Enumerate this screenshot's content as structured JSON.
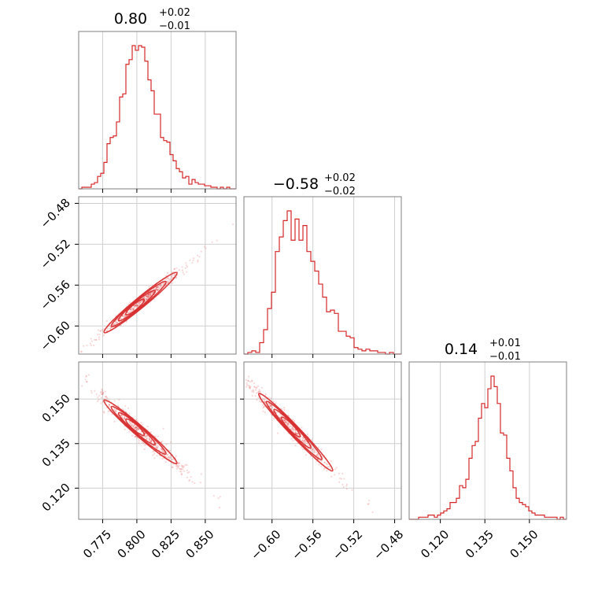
{
  "chart_data": {
    "type": "corner",
    "color": "#d62728",
    "grid": true,
    "params": [
      {
        "title": "0.80",
        "sup": "+0.02",
        "sub": "−0.01",
        "range": [
          0.7575,
          0.8725
        ],
        "ticks": [
          0.775,
          0.8,
          0.825,
          0.85
        ],
        "tick_labels": [
          "0.775",
          "0.800",
          "0.825",
          "0.850"
        ],
        "hist": [
          0,
          1,
          1,
          1,
          3,
          4,
          8,
          10,
          17,
          29,
          33,
          34,
          43,
          59,
          61,
          80,
          83,
          92,
          89,
          92,
          91,
          82,
          70,
          63,
          48,
          48,
          33,
          31,
          30,
          22,
          18,
          13,
          11,
          7,
          8,
          3,
          6,
          4,
          3,
          3,
          2,
          2,
          1,
          1,
          0,
          1,
          0,
          1,
          0,
          0
        ]
      },
      {
        "title": "−0.58",
        "sup": "+0.02",
        "sub": "−0.02",
        "range": [
          -0.6275,
          -0.4735
        ],
        "ticks": [
          -0.6,
          -0.56,
          -0.52,
          -0.48
        ],
        "tick_labels": [
          "−0.60",
          "−0.56",
          "−0.52",
          "−0.48"
        ],
        "hist": [
          0,
          1,
          2,
          1,
          7,
          15,
          28,
          38,
          63,
          72,
          82,
          88,
          70,
          83,
          70,
          79,
          63,
          57,
          51,
          43,
          35,
          26,
          27,
          25,
          14,
          14,
          11,
          10,
          4,
          3,
          2,
          3,
          2,
          2,
          1,
          1,
          0,
          1,
          0,
          0
        ]
      },
      {
        "title": "0.14",
        "sup": "+0.01",
        "sub": "−0.01",
        "range": [
          0.1095,
          0.1625
        ],
        "ticks": [
          0.12,
          0.135,
          0.15
        ],
        "tick_labels": [
          "0.120",
          "0.135",
          "0.150"
        ],
        "hist": [
          0,
          0,
          0,
          1,
          1,
          1,
          2,
          2,
          1,
          2,
          3,
          4,
          5,
          8,
          8,
          10,
          16,
          15,
          19,
          29,
          35,
          37,
          48,
          55,
          53,
          62,
          68,
          63,
          55,
          41,
          40,
          29,
          23,
          15,
          10,
          8,
          7,
          6,
          4,
          3,
          2,
          2,
          2,
          1,
          1,
          1,
          1,
          0,
          1,
          0
        ]
      }
    ],
    "relations": {
      "y_vs_x": {
        "slope": 1.1,
        "pivot": [
          0.8,
          -0.58
        ],
        "scatter": 0.003
      },
      "z_vs_x": {
        "slope": -0.4,
        "pivot": [
          0.8,
          0.14
        ],
        "scatter": 0.0015
      },
      "z_vs_y": {
        "slope": -0.36,
        "pivot": [
          -0.58,
          0.14
        ],
        "scatter": 0.0015
      }
    }
  }
}
